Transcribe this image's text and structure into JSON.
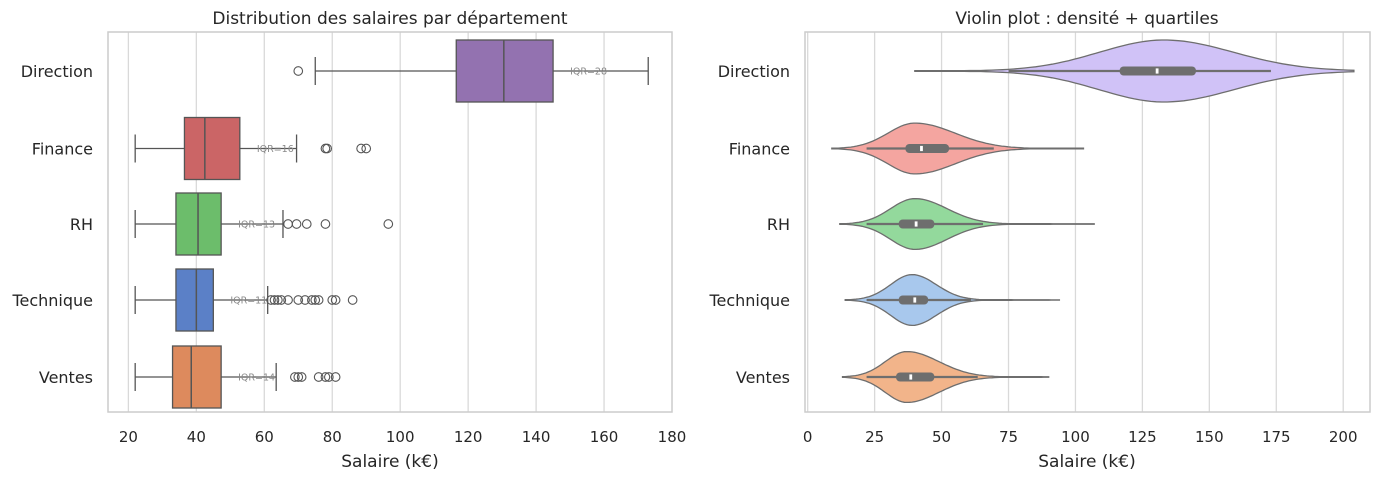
{
  "chart_data": [
    {
      "type": "box",
      "title": "Distribution des salaires par département",
      "xlabel": "Salaire (k€)",
      "ylabel": "",
      "xlim": [
        14,
        180
      ],
      "xticks": [
        20,
        40,
        60,
        80,
        100,
        120,
        140,
        160,
        180
      ],
      "grid": "vertical",
      "categories": [
        "Direction",
        "Finance",
        "RH",
        "Technique",
        "Ventes"
      ],
      "boxes": [
        {
          "name": "Direction",
          "color": "#9372b0",
          "whisker_low": 75,
          "q1": 116.5,
          "median": 130.5,
          "q3": 145,
          "whisker_high": 173,
          "outliers": [
            70
          ],
          "iqr_label": "IQR=28"
        },
        {
          "name": "Finance",
          "color": "#cb6566",
          "whisker_low": 22,
          "q1": 36.5,
          "median": 42.5,
          "q3": 52.8,
          "whisker_high": 69.5,
          "outliers": [
            78,
            78.5,
            88.5,
            90
          ],
          "iqr_label": "IQR=16"
        },
        {
          "name": "RH",
          "color": "#6cbd6b",
          "whisker_low": 22,
          "q1": 34,
          "median": 40.5,
          "q3": 47.3,
          "whisker_high": 65.5,
          "outliers": [
            67,
            69.5,
            72.5,
            78,
            96.5
          ],
          "iqr_label": "IQR=13"
        },
        {
          "name": "Technique",
          "color": "#5b80c7",
          "whisker_low": 22,
          "q1": 34,
          "median": 40,
          "q3": 45,
          "whisker_high": 61,
          "outliers": [
            62,
            63,
            64,
            65,
            67,
            70,
            72,
            74,
            75,
            76,
            80,
            81,
            86
          ],
          "iqr_label": "IQR=11"
        },
        {
          "name": "Ventes",
          "color": "#dd8a5d",
          "whisker_low": 22,
          "q1": 33,
          "median": 38.5,
          "q3": 47.3,
          "whisker_high": 63.5,
          "outliers": [
            69,
            70,
            71,
            76,
            78,
            79,
            81
          ],
          "iqr_label": "IQR=14"
        }
      ]
    },
    {
      "type": "violin",
      "title": "Violin plot : densité + quartiles",
      "xlabel": "Salaire (k€)",
      "ylabel": "",
      "xlim": [
        -1,
        210
      ],
      "xticks": [
        0,
        25,
        50,
        75,
        100,
        125,
        150,
        175,
        200
      ],
      "grid": "vertical",
      "categories": [
        "Direction",
        "Finance",
        "RH",
        "Technique",
        "Ventes"
      ],
      "violins": [
        {
          "name": "Direction",
          "color": "#d0c2f7",
          "min": 40,
          "max": 204,
          "whisker_low": 75,
          "q1": 116.5,
          "median": 130.5,
          "q3": 145,
          "whisker_high": 173,
          "mode": 133,
          "spread_low": 24,
          "spread_high": 26,
          "peak": 1
        },
        {
          "name": "Finance",
          "color": "#f4a5a0",
          "min": 9,
          "max": 103,
          "whisker_low": 22,
          "q1": 36.5,
          "median": 42.5,
          "q3": 52.8,
          "whisker_high": 69.5,
          "mode": 40,
          "spread_low": 10,
          "spread_high": 15,
          "peak": 0.82
        },
        {
          "name": "RH",
          "color": "#93d99c",
          "min": 12,
          "max": 107,
          "whisker_low": 22,
          "q1": 34,
          "median": 40.5,
          "q3": 47.3,
          "whisker_high": 65.5,
          "mode": 40,
          "spread_low": 9,
          "spread_high": 12,
          "peak": 0.82
        },
        {
          "name": "Technique",
          "color": "#a8c8ed",
          "min": 14,
          "max": 94,
          "whisker_low": 22,
          "q1": 34,
          "median": 40,
          "q3": 45,
          "whisker_high": 61,
          "mode": 39,
          "spread_low": 8,
          "spread_high": 9,
          "peak": 0.82
        },
        {
          "name": "Ventes",
          "color": "#f2b48a",
          "min": 13,
          "max": 90,
          "whisker_low": 22,
          "q1": 33,
          "median": 38.5,
          "q3": 47.3,
          "whisker_high": 63.5,
          "mode": 37,
          "spread_low": 8,
          "spread_high": 12,
          "peak": 0.82
        }
      ]
    }
  ]
}
